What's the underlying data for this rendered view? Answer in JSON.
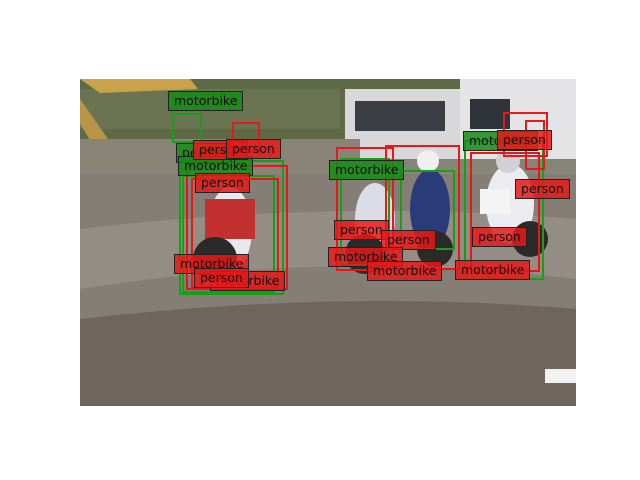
{
  "labels": {
    "motorbike": "motorbike",
    "person": "person"
  },
  "colors": {
    "ground_truth": "#15a015",
    "prediction": "#e81818",
    "background": "#ffffff"
  }
}
